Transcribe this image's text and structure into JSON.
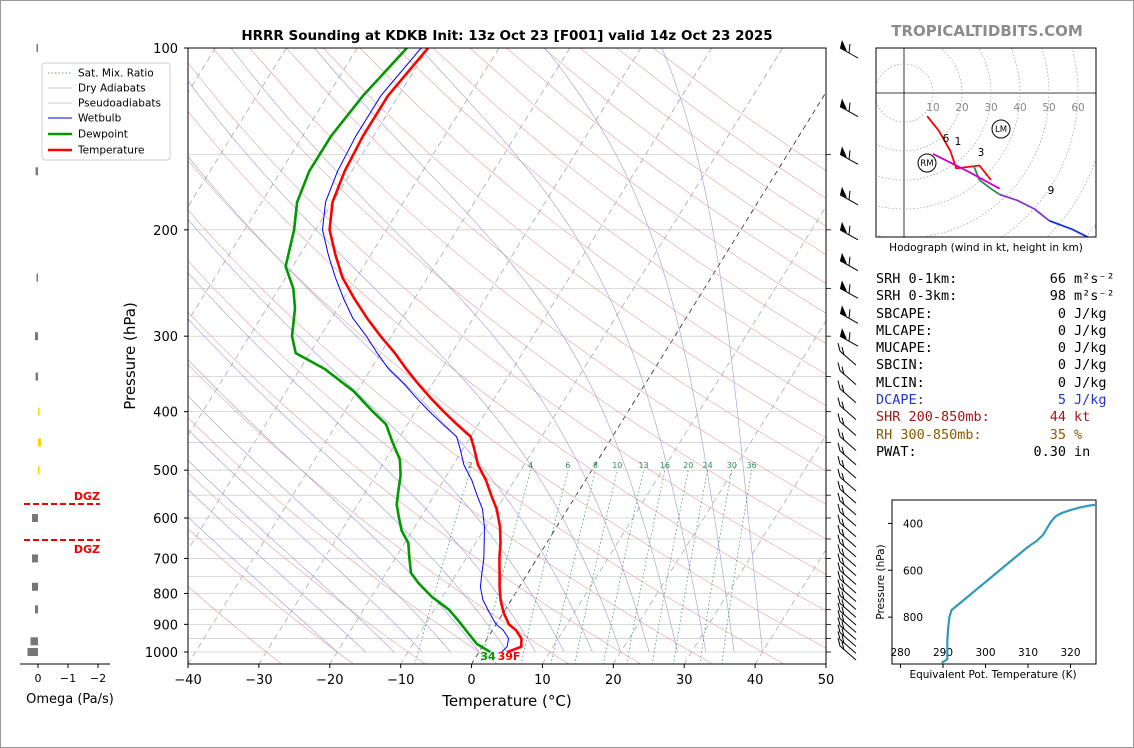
{
  "title": "HRRR Sounding at KDKB Init: 13z Oct 23 [F001] valid 14z Oct 23 2025",
  "brand": "TROPICALTIDBITS.COM",
  "colors": {
    "temperature": "#ff0000",
    "dewpoint": "#009900",
    "wetbulb": "#0000ff",
    "dgz": "#ee0000",
    "omega_neg": "#f5d800",
    "omega_pos": "#777777",
    "theta_e": "#3399bb",
    "hodo_0_1": "#ff0000",
    "hodo_1_3": "#2e8b57",
    "hodo_3_6": "#8833cc",
    "hodo_6_9": "#cc00cc",
    "hodo_9_12": "#1133dd"
  },
  "chart_data": [
    {
      "type": "line",
      "title": "HRRR Sounding at KDKB Init: 13z Oct 23 [F001] valid 14z Oct 23 2025",
      "subtype": "skew-T log-P",
      "xlabel": "Temperature (°C)",
      "ylabel": "Pressure (hPa)",
      "xlim": [
        -40,
        50
      ],
      "ylim": [
        1050,
        100
      ],
      "yscale": "log",
      "xticks": [
        "−40",
        "−30",
        "−20",
        "−10",
        "0",
        "10",
        "20",
        "30",
        "40",
        "50"
      ],
      "yticks": [
        "100",
        "200",
        "300",
        "400",
        "500",
        "600",
        "700",
        "800",
        "900",
        "1000"
      ],
      "legend": [
        "Sat. Mix. Ratio",
        "Dry Adiabats",
        "Pseudoadiabats",
        "Wetbulb",
        "Dewpoint",
        "Temperature"
      ],
      "legend_position": "upper-left",
      "surface_labels": {
        "dewpoint": "34",
        "temperature": "39F"
      },
      "mixing_ratio_labels": [
        "2",
        "4",
        "6",
        "8",
        "10",
        "13",
        "16",
        "20",
        "24",
        "30",
        "36"
      ],
      "series": [
        {
          "name": "Temperature",
          "points": [
            [
              4,
              1000
            ],
            [
              5.5,
              980
            ],
            [
              4.8,
              950
            ],
            [
              3.3,
              920
            ],
            [
              1.8,
              900
            ],
            [
              0,
              860
            ],
            [
              -1.5,
              820
            ],
            [
              -2.8,
              780
            ],
            [
              -4,
              740
            ],
            [
              -5.3,
              700
            ],
            [
              -6.5,
              660
            ],
            [
              -8,
              620
            ],
            [
              -10,
              580
            ],
            [
              -12,
              550
            ],
            [
              -14,
              520
            ],
            [
              -16.5,
              490
            ],
            [
              -18.5,
              460
            ],
            [
              -20,
              440
            ],
            [
              -23,
              420
            ],
            [
              -26,
              400
            ],
            [
              -29,
              380
            ],
            [
              -32,
              360
            ],
            [
              -35,
              340
            ],
            [
              -38,
              320
            ],
            [
              -41.5,
              300
            ],
            [
              -45,
              280
            ],
            [
              -48.5,
              260
            ],
            [
              -52,
              240
            ],
            [
              -55,
              220
            ],
            [
              -58,
              200
            ],
            [
              -60,
              180
            ],
            [
              -61,
              160
            ],
            [
              -61.5,
              140
            ],
            [
              -61.5,
              120
            ],
            [
              -60,
              100
            ]
          ]
        },
        {
          "name": "Wetbulb",
          "points": [
            [
              3.2,
              1000
            ],
            [
              3.5,
              980
            ],
            [
              3,
              950
            ],
            [
              1.5,
              920
            ],
            [
              0,
              900
            ],
            [
              -2,
              860
            ],
            [
              -4,
              820
            ],
            [
              -5.5,
              780
            ],
            [
              -6.5,
              740
            ],
            [
              -7.5,
              700
            ],
            [
              -8.8,
              660
            ],
            [
              -10.2,
              620
            ],
            [
              -12,
              580
            ],
            [
              -14,
              550
            ],
            [
              -16,
              520
            ],
            [
              -18.5,
              490
            ],
            [
              -20.5,
              460
            ],
            [
              -22,
              440
            ],
            [
              -25,
              420
            ],
            [
              -28,
              400
            ],
            [
              -31,
              380
            ],
            [
              -34,
              360
            ],
            [
              -37.5,
              340
            ],
            [
              -40.5,
              320
            ],
            [
              -43.5,
              300
            ],
            [
              -47,
              280
            ],
            [
              -50,
              260
            ],
            [
              -53,
              240
            ],
            [
              -56,
              220
            ],
            [
              -59,
              200
            ],
            [
              -61,
              180
            ],
            [
              -62,
              160
            ],
            [
              -62.5,
              140
            ],
            [
              -62.5,
              120
            ],
            [
              -61,
              100
            ]
          ]
        },
        {
          "name": "Dewpoint",
          "points": [
            [
              1.6,
              1000
            ],
            [
              -1,
              970
            ],
            [
              -3.2,
              930
            ],
            [
              -5.5,
              890
            ],
            [
              -8,
              850
            ],
            [
              -11.5,
              810
            ],
            [
              -14.5,
              770
            ],
            [
              -16.5,
              740
            ],
            [
              -18,
              700
            ],
            [
              -19.5,
              660
            ],
            [
              -21.5,
              630
            ],
            [
              -23,
              600
            ],
            [
              -24.5,
              570
            ],
            [
              -25.5,
              540
            ],
            [
              -26.5,
              510
            ],
            [
              -28,
              480
            ],
            [
              -30.5,
              450
            ],
            [
              -33,
              420
            ],
            [
              -36,
              400
            ],
            [
              -40.5,
              370
            ],
            [
              -46.5,
              340
            ],
            [
              -52,
              320
            ],
            [
              -54,
              300
            ],
            [
              -56,
              270
            ],
            [
              -58,
              250
            ],
            [
              -61,
              230
            ],
            [
              -63,
              200
            ],
            [
              -65,
              180
            ],
            [
              -66,
              160
            ],
            [
              -66,
              140
            ],
            [
              -65,
              120
            ],
            [
              -63,
              100
            ]
          ]
        }
      ]
    },
    {
      "type": "line",
      "subtype": "hodograph",
      "xlabel": "Hodograph (wind in kt, height in km)",
      "ring_labels": [
        "10",
        "20",
        "30",
        "40",
        "50",
        "60"
      ],
      "height_labels": [
        "1",
        "3",
        "6",
        "9"
      ],
      "markers": [
        "LM",
        "RM"
      ],
      "series": [
        {
          "name": "0-1 km",
          "points": [
            [
              8,
              8
            ],
            [
              12,
              13
            ],
            [
              16,
              20
            ],
            [
              18,
              26
            ],
            [
              26,
              25
            ],
            [
              30,
              30
            ]
          ]
        },
        {
          "name": "1-3 km",
          "points": [
            [
              24,
              25
            ],
            [
              26,
              30
            ],
            [
              30,
              33
            ],
            [
              33,
              35
            ]
          ]
        },
        {
          "name": "3-6 km",
          "points": [
            [
              33,
              35
            ],
            [
              39,
              37
            ],
            [
              45,
              40
            ],
            [
              50,
              44
            ]
          ]
        },
        {
          "name": "6-9 km",
          "points": [
            [
              10,
              21
            ],
            [
              16,
              24
            ],
            [
              22,
              27
            ],
            [
              33,
              33
            ]
          ]
        },
        {
          "name": "9-12 km",
          "points": [
            [
              50,
              44
            ],
            [
              58,
              47
            ],
            [
              66,
              51
            ],
            [
              73,
              55
            ],
            [
              70,
              49
            ],
            [
              66,
              46
            ]
          ]
        }
      ]
    },
    {
      "type": "line",
      "subtype": "theta-e profile",
      "xlabel": "Equivalent Pot. Temperature (K)",
      "ylabel": "Pressure (hPa)",
      "xlim": [
        278,
        326
      ],
      "ylim": [
        1000,
        300
      ],
      "xticks": [
        "280",
        "290",
        "300",
        "310",
        "320"
      ],
      "yticks": [
        "400",
        "600",
        "800"
      ],
      "series": [
        {
          "name": "Theta-E",
          "points": [
            [
              289.7,
              995
            ],
            [
              291,
              980
            ],
            [
              291,
              950
            ],
            [
              291,
              900
            ],
            [
              291.2,
              850
            ],
            [
              291.5,
              800
            ],
            [
              292,
              770
            ],
            [
              294,
              740
            ],
            [
              296,
              710
            ],
            [
              298,
              680
            ],
            [
              300,
              650
            ],
            [
              302,
              620
            ],
            [
              304,
              590
            ],
            [
              306,
              560
            ],
            [
              308,
              530
            ],
            [
              310,
              500
            ],
            [
              312,
              475
            ],
            [
              313.5,
              450
            ],
            [
              314.5,
              420
            ],
            [
              315.5,
              390
            ],
            [
              316.5,
              370
            ],
            [
              318,
              355
            ],
            [
              320,
              343
            ],
            [
              322,
              333
            ],
            [
              324,
              325
            ],
            [
              326,
              320
            ]
          ]
        }
      ]
    },
    {
      "type": "bar",
      "subtype": "omega profile",
      "xlabel": "Omega (Pa/s)",
      "xticks": [
        "0",
        "−1",
        "−2"
      ],
      "annotations": [
        "DGZ",
        "DGZ"
      ],
      "values": [
        {
          "p": 100,
          "omega": 0.05
        },
        {
          "p": 160,
          "omega": 0.08
        },
        {
          "p": 240,
          "omega": 0.05
        },
        {
          "p": 300,
          "omega": 0.1
        },
        {
          "p": 350,
          "omega": 0.08
        },
        {
          "p": 400,
          "omega": -0.05
        },
        {
          "p": 450,
          "omega": -0.1
        },
        {
          "p": 500,
          "omega": -0.05
        },
        {
          "p": 600,
          "omega": 0.2
        },
        {
          "p": 700,
          "omega": 0.2
        },
        {
          "p": 780,
          "omega": 0.2
        },
        {
          "p": 850,
          "omega": 0.1
        },
        {
          "p": 960,
          "omega": 0.25
        },
        {
          "p": 1000,
          "omega": 0.35
        }
      ],
      "dgz_bounds": [
        570,
        660
      ]
    }
  ],
  "stats": [
    {
      "name": "SRH 0-1km:",
      "value": "66",
      "unit": "m²s⁻²",
      "color": "#000000"
    },
    {
      "name": "SRH 0-3km:",
      "value": "98",
      "unit": "m²s⁻²",
      "color": "#000000"
    },
    {
      "name": "SBCAPE:",
      "value": "0",
      "unit": "J/kg",
      "color": "#000000"
    },
    {
      "name": "MLCAPE:",
      "value": "0",
      "unit": "J/kg",
      "color": "#000000"
    },
    {
      "name": "MUCAPE:",
      "value": "0",
      "unit": "J/kg",
      "color": "#000000"
    },
    {
      "name": "SBCIN:",
      "value": "0",
      "unit": "J/kg",
      "color": "#000000"
    },
    {
      "name": "MLCIN:",
      "value": "0",
      "unit": "J/kg",
      "color": "#000000"
    },
    {
      "name": "DCAPE:",
      "value": "5",
      "unit": "J/kg",
      "color": "#2233cc"
    },
    {
      "name": "SHR 200-850mb:",
      "value": "44",
      "unit": "kt",
      "color": "#a01818"
    },
    {
      "name": "RH 300-850mb:",
      "value": "35",
      "unit": "%",
      "color": "#8a5a00"
    },
    {
      "name": "PWAT:",
      "value": "0.30",
      "unit": "in",
      "color": "#000000"
    }
  ]
}
